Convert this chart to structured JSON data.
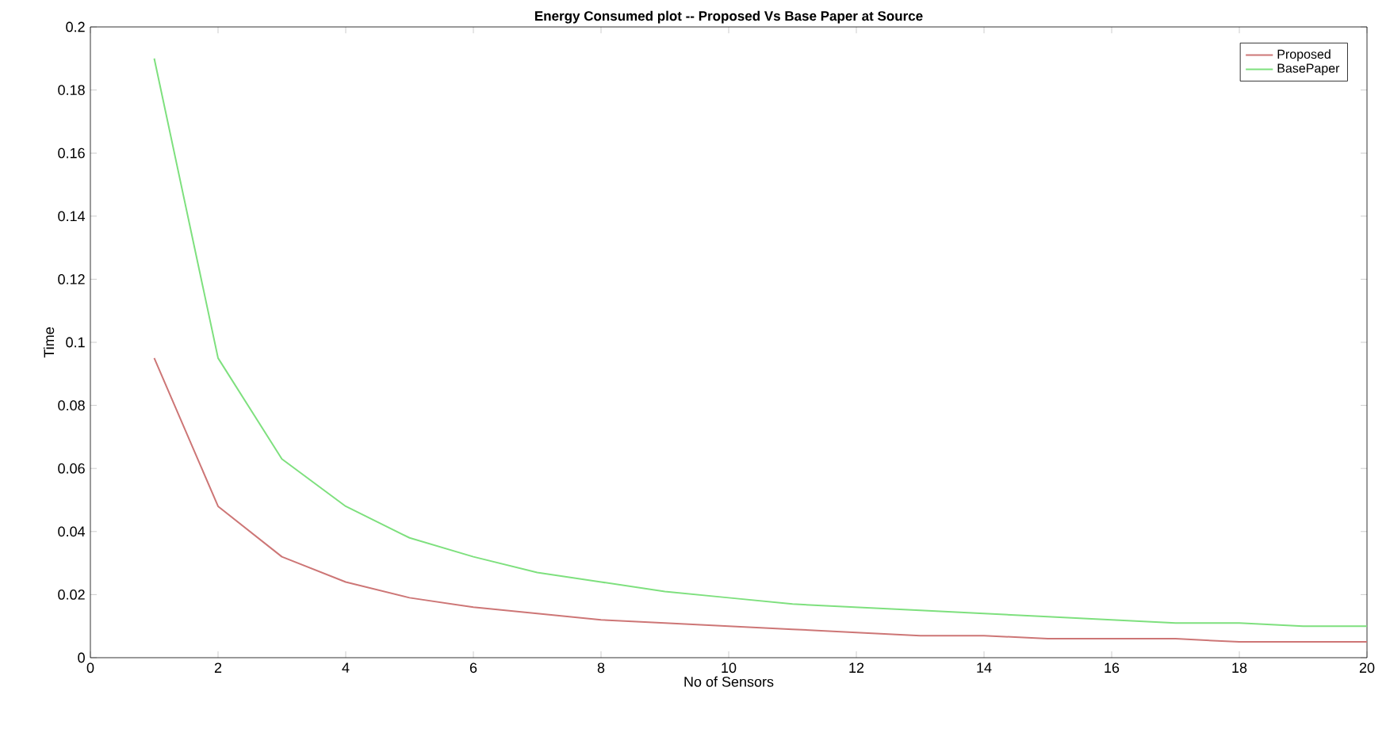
{
  "chart_data": {
    "type": "line",
    "title": "Energy Consumed plot -- Proposed Vs Base Paper at Source",
    "xlabel": "No of Sensors",
    "ylabel": "Time",
    "x": [
      1,
      2,
      3,
      4,
      5,
      6,
      7,
      8,
      9,
      10,
      11,
      12,
      13,
      14,
      15,
      16,
      17,
      18,
      19,
      20
    ],
    "series": [
      {
        "name": "Proposed",
        "color": "#cd7676",
        "values": [
          0.095,
          0.048,
          0.032,
          0.024,
          0.019,
          0.016,
          0.014,
          0.012,
          0.011,
          0.01,
          0.009,
          0.008,
          0.007,
          0.007,
          0.006,
          0.006,
          0.006,
          0.005,
          0.005,
          0.005
        ]
      },
      {
        "name": "BasePaper",
        "color": "#7ee07e",
        "values": [
          0.19,
          0.095,
          0.063,
          0.048,
          0.038,
          0.032,
          0.027,
          0.024,
          0.021,
          0.019,
          0.017,
          0.016,
          0.015,
          0.014,
          0.013,
          0.012,
          0.011,
          0.011,
          0.01,
          0.01
        ]
      }
    ],
    "xlim": [
      0,
      20
    ],
    "xticks": [
      0,
      2,
      4,
      6,
      8,
      10,
      12,
      14,
      16,
      18,
      20
    ],
    "ylim": [
      0,
      0.2
    ],
    "yticks": [
      0,
      0.02,
      0.04,
      0.06,
      0.08,
      0.1,
      0.12,
      0.14,
      0.16,
      0.18,
      0.2
    ],
    "grid": false,
    "legend": "top right",
    "marker": "none",
    "line_style": "solid"
  }
}
